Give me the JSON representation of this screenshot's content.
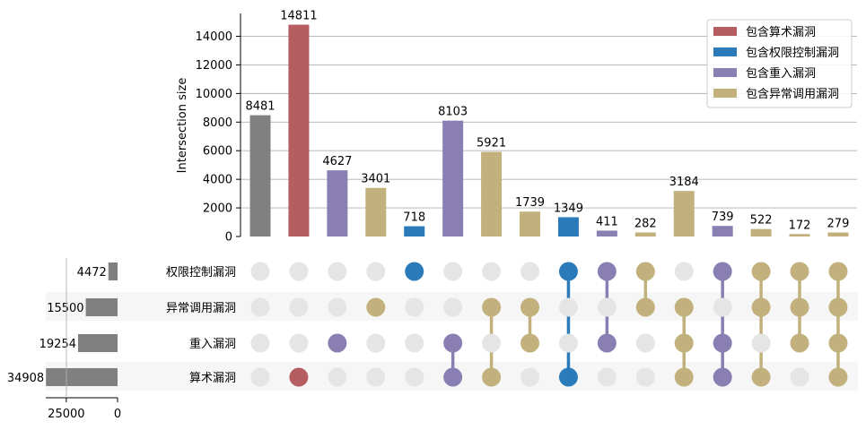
{
  "chart_data": {
    "type": "upset",
    "ylabel": "Intersection size",
    "ylim": [
      0,
      15600
    ],
    "yticks": [
      0,
      2000,
      4000,
      6000,
      8000,
      10000,
      12000,
      14000
    ],
    "grid": true,
    "legend_position": "top-right",
    "sets": [
      {
        "name": "权限控制漏洞",
        "size": 4472
      },
      {
        "name": "异常调用漏洞",
        "size": 15500
      },
      {
        "name": "重入漏洞",
        "size": 19254
      },
      {
        "name": "算术漏洞",
        "size": 34908
      }
    ],
    "set_size_ticks": [
      25000,
      0
    ],
    "set_size_max": 35000,
    "legend": [
      {
        "label": "包含算术漏洞",
        "color": "#b55d60"
      },
      {
        "label": "包含权限控制漏洞",
        "color": "#2b7bba"
      },
      {
        "label": "包含重入漏洞",
        "color": "#8a7fb2"
      },
      {
        "label": "包含异常调用漏洞",
        "color": "#c2b17c"
      }
    ],
    "intersections": [
      {
        "value": 8481,
        "members": [],
        "color": "#808080"
      },
      {
        "value": 14811,
        "members": [
          "算术漏洞"
        ],
        "color": "#b55d60"
      },
      {
        "value": 4627,
        "members": [
          "重入漏洞"
        ],
        "color": "#8a7fb2"
      },
      {
        "value": 3401,
        "members": [
          "异常调用漏洞"
        ],
        "color": "#c2b17c"
      },
      {
        "value": 718,
        "members": [
          "权限控制漏洞"
        ],
        "color": "#2b7bba"
      },
      {
        "value": 8103,
        "members": [
          "重入漏洞",
          "算术漏洞"
        ],
        "color": "#8a7fb2"
      },
      {
        "value": 5921,
        "members": [
          "异常调用漏洞",
          "算术漏洞"
        ],
        "color": "#c2b17c"
      },
      {
        "value": 1739,
        "members": [
          "异常调用漏洞",
          "重入漏洞"
        ],
        "color": "#c2b17c"
      },
      {
        "value": 1349,
        "members": [
          "权限控制漏洞",
          "算术漏洞"
        ],
        "color": "#2b7bba"
      },
      {
        "value": 411,
        "members": [
          "权限控制漏洞",
          "重入漏洞"
        ],
        "color": "#8a7fb2"
      },
      {
        "value": 282,
        "members": [
          "权限控制漏洞",
          "异常调用漏洞"
        ],
        "color": "#c2b17c"
      },
      {
        "value": 3184,
        "members": [
          "异常调用漏洞",
          "重入漏洞",
          "算术漏洞"
        ],
        "color": "#c2b17c"
      },
      {
        "value": 739,
        "members": [
          "权限控制漏洞",
          "重入漏洞",
          "算术漏洞"
        ],
        "color": "#8a7fb2"
      },
      {
        "value": 522,
        "members": [
          "权限控制漏洞",
          "异常调用漏洞",
          "算术漏洞"
        ],
        "color": "#c2b17c"
      },
      {
        "value": 172,
        "members": [
          "权限控制漏洞",
          "异常调用漏洞",
          "重入漏洞"
        ],
        "color": "#c2b17c"
      },
      {
        "value": 279,
        "members": [
          "权限控制漏洞",
          "异常调用漏洞",
          "重入漏洞",
          "算术漏洞"
        ],
        "color": "#c2b17c"
      }
    ],
    "inactive_dot_color": "#e5e5e5",
    "shade_color": "#f6f6f6",
    "set_bar_color": "#808080"
  }
}
